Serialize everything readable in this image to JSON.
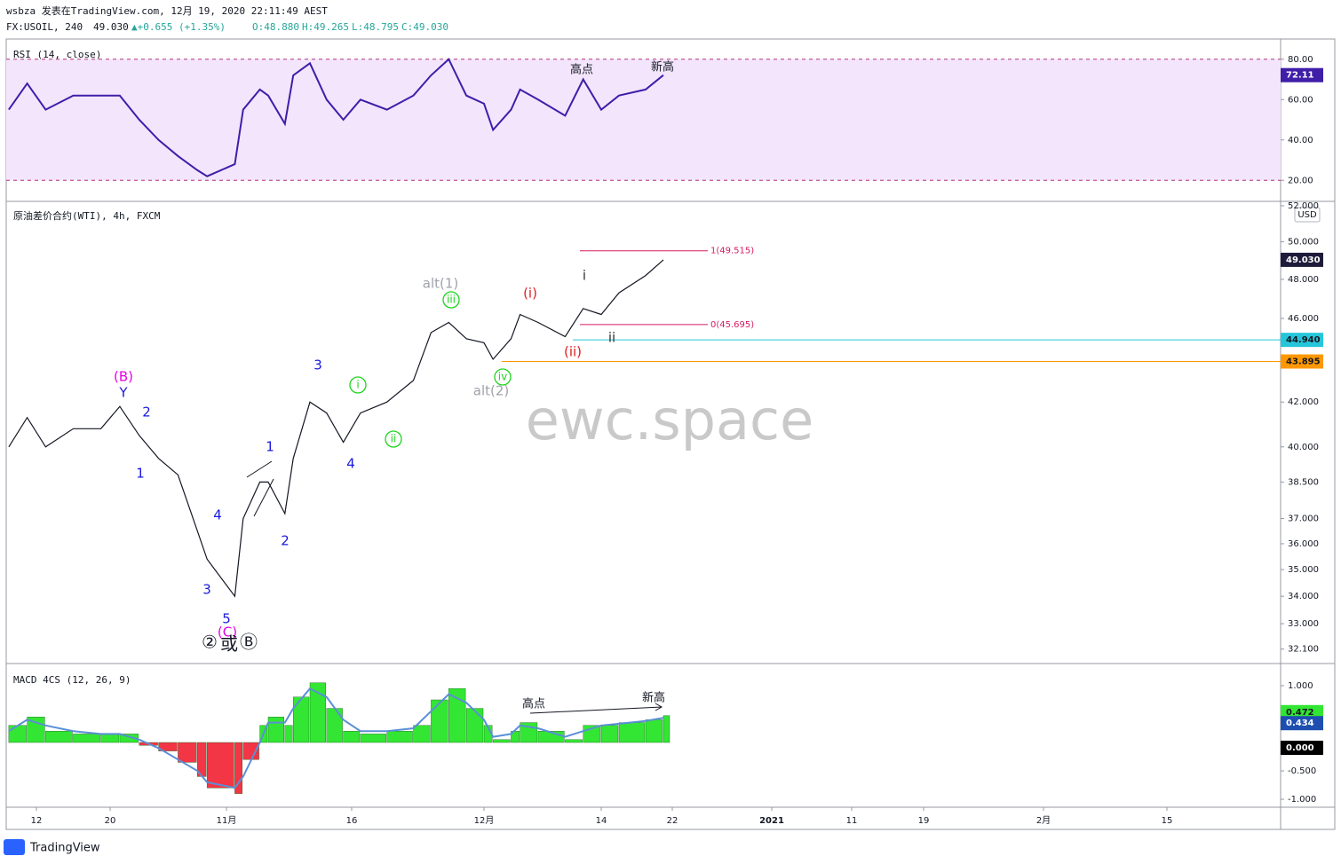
{
  "header": {
    "line1": "wsbza 发表在TradingView.com, 12月 19, 2020 22:11:49 AEST",
    "symbol": "FX:USOIL, 240",
    "last": "49.030",
    "change": "▲+0.655 (+1.35%)",
    "ohlc": [
      "O:48.880",
      "H:49.265",
      "L:48.795",
      "C:49.030"
    ]
  },
  "footer": "TradingView",
  "watermark": "ewc.space",
  "chart_data": [
    {
      "type": "line",
      "title": "RSI (14, close)",
      "color": "#3f1ea8",
      "x": [
        "2020-10-09",
        "2020-10-11",
        "2020-10-13",
        "2020-10-16",
        "2020-10-19",
        "2020-10-21",
        "2020-10-23",
        "2020-10-25",
        "2020-10-27",
        "2020-10-29",
        "2020-10-30",
        "2020-11-02",
        "2020-11-03",
        "2020-11-05",
        "2020-11-06",
        "2020-11-08",
        "2020-11-09",
        "2020-11-11",
        "2020-11-13",
        "2020-11-15",
        "2020-11-17",
        "2020-11-20",
        "2020-11-23",
        "2020-11-25",
        "2020-11-27",
        "2020-11-29",
        "2020-12-01",
        "2020-12-02",
        "2020-12-04",
        "2020-12-05",
        "2020-12-07",
        "2020-12-10",
        "2020-12-12",
        "2020-12-14",
        "2020-12-16",
        "2020-12-19",
        "2020-12-21"
      ],
      "values": [
        55,
        68,
        55,
        62,
        62,
        62,
        50,
        40,
        32,
        25,
        22,
        28,
        55,
        65,
        62,
        48,
        72,
        78,
        60,
        50,
        60,
        55,
        62,
        72,
        80,
        62,
        58,
        45,
        55,
        65,
        60,
        52,
        70,
        55,
        62,
        65,
        72.11
      ],
      "ylim": [
        10,
        90
      ],
      "yticks": [
        {
          "value": 80,
          "label": "80.00"
        },
        {
          "value": 60,
          "label": "60.00"
        },
        {
          "value": 40,
          "label": "40.00"
        },
        {
          "value": 20,
          "label": "20.00"
        }
      ],
      "band": [
        20,
        80
      ],
      "band_color": "#f3e5fc",
      "annotations": [
        {
          "text": "高点",
          "color": "#131722"
        },
        {
          "text": "新高",
          "color": "#131722"
        }
      ]
    },
    {
      "type": "line",
      "title": "原油差价合约(WTI), 4h, FXCM",
      "currency": "USD",
      "log_scale": true,
      "color": "#131722",
      "x": [
        "2020-10-09",
        "2020-10-11",
        "2020-10-13",
        "2020-10-16",
        "2020-10-19",
        "2020-10-21",
        "2020-10-23",
        "2020-10-25",
        "2020-10-27",
        "2020-10-29",
        "2020-10-30",
        "2020-11-02",
        "2020-11-03",
        "2020-11-05",
        "2020-11-06",
        "2020-11-08",
        "2020-11-09",
        "2020-11-11",
        "2020-11-13",
        "2020-11-15",
        "2020-11-17",
        "2020-11-20",
        "2020-11-23",
        "2020-11-25",
        "2020-11-27",
        "2020-11-29",
        "2020-12-01",
        "2020-12-02",
        "2020-12-04",
        "2020-12-05",
        "2020-12-07",
        "2020-12-10",
        "2020-12-12",
        "2020-12-14",
        "2020-12-16",
        "2020-12-19",
        "2020-12-21"
      ],
      "values": [
        40.0,
        41.3,
        40.0,
        40.8,
        40.8,
        41.8,
        40.5,
        39.5,
        38.8,
        36.5,
        35.4,
        34.0,
        37.0,
        38.5,
        38.5,
        37.2,
        39.5,
        42.0,
        41.5,
        40.2,
        41.5,
        42.0,
        43.0,
        45.3,
        45.8,
        45.0,
        44.8,
        44.0,
        45.0,
        46.2,
        45.8,
        45.1,
        46.5,
        46.2,
        47.3,
        48.2,
        49.03
      ],
      "ylim": [
        31.6,
        52.2
      ],
      "yticks": [
        {
          "value": 52,
          "label": "52.000"
        },
        {
          "value": 50,
          "label": "50.000"
        },
        {
          "value": 48,
          "label": "48.000"
        },
        {
          "value": 46,
          "label": "46.000"
        },
        {
          "value": 42,
          "label": "42.000"
        },
        {
          "value": 40,
          "label": "40.000"
        },
        {
          "value": 38.5,
          "label": "38.500"
        },
        {
          "value": 37,
          "label": "37.000"
        },
        {
          "value": 36,
          "label": "36.000"
        },
        {
          "value": 35,
          "label": "35.000"
        },
        {
          "value": 34,
          "label": "34.000"
        },
        {
          "value": 33,
          "label": "33.000"
        },
        {
          "value": 32.1,
          "label": "32.100"
        }
      ],
      "xticks": [
        {
          "value": "2020-10-12",
          "label": "12"
        },
        {
          "value": "2020-10-20",
          "label": "20"
        },
        {
          "value": "2020-11-01",
          "label": "11月"
        },
        {
          "value": "2020-11-16",
          "label": "16"
        },
        {
          "value": "2020-12-01",
          "label": "12月"
        },
        {
          "value": "2020-12-14",
          "label": "14"
        },
        {
          "value": "2020-12-22",
          "label": "22"
        },
        {
          "value": "2021-01-01",
          "label": "2021"
        },
        {
          "value": "2021-01-11",
          "label": "11"
        },
        {
          "value": "2021-01-19",
          "label": "19"
        },
        {
          "value": "2021-02-01",
          "label": "2月"
        },
        {
          "value": "2021-02-15",
          "label": "15"
        }
      ],
      "levels": [
        {
          "value": 49.515,
          "label": "1(49.515)"
        },
        {
          "value": 45.695,
          "label": "0(45.695)"
        }
      ],
      "level_color": "#d81b60",
      "tags": [
        {
          "value": 49.03,
          "label": "49.030",
          "color": "#1e1b3a",
          "line": false
        },
        {
          "value": 44.94,
          "label": "44.940",
          "color": "#26c6da",
          "line": true
        },
        {
          "value": 43.895,
          "label": "43.895",
          "color": "#ff9800",
          "line": true
        }
      ],
      "annotations": [
        {
          "text": "(B)",
          "color": "#e600e6"
        },
        {
          "text": "Y",
          "color": "#1a1adb"
        },
        {
          "text": "2",
          "color": "#1a1adb"
        },
        {
          "text": "1",
          "color": "#1a1adb"
        },
        {
          "text": "4",
          "color": "#1a1adb"
        },
        {
          "text": "3",
          "color": "#1a1adb"
        },
        {
          "text": "5",
          "color": "#1a1adb"
        },
        {
          "text": "(C)",
          "color": "#e600e6"
        },
        {
          "text": "②",
          "color": "#131722"
        },
        {
          "text": "或",
          "color": "#131722"
        },
        {
          "text": "Ⓑ",
          "color": "#131722"
        },
        {
          "text": "1",
          "color": "#1a1adb"
        },
        {
          "text": "2",
          "color": "#1a1adb"
        },
        {
          "text": "3",
          "color": "#1a1adb"
        },
        {
          "text": "4",
          "color": "#1a1adb"
        },
        {
          "text": "i",
          "color": "#1ed41e",
          "circled": true
        },
        {
          "text": "ii",
          "color": "#1ed41e",
          "circled": true
        },
        {
          "text": "iii",
          "color": "#1ed41e",
          "circled": true
        },
        {
          "text": "iv",
          "color": "#1ed41e",
          "circled": true
        },
        {
          "text": "alt(1)",
          "color": "#a0a3ab"
        },
        {
          "text": "alt(2)",
          "color": "#a0a3ab"
        },
        {
          "text": "(i)",
          "color": "#e01f1f"
        },
        {
          "text": "(ii)",
          "color": "#e01f1f"
        },
        {
          "text": "i",
          "color": "#333333"
        },
        {
          "text": "ii",
          "color": "#333333"
        }
      ]
    },
    {
      "type": "macd",
      "title": "MACD 4CS (12, 26, 9)",
      "up_color": "#33e633",
      "down_color": "#f23645",
      "signal_color": "#5b8fd6",
      "x": [
        "2020-10-09",
        "2020-10-11",
        "2020-10-13",
        "2020-10-16",
        "2020-10-19",
        "2020-10-21",
        "2020-10-23",
        "2020-10-25",
        "2020-10-27",
        "2020-10-29",
        "2020-10-30",
        "2020-11-02",
        "2020-11-03",
        "2020-11-05",
        "2020-11-06",
        "2020-11-08",
        "2020-11-09",
        "2020-11-11",
        "2020-11-13",
        "2020-11-15",
        "2020-11-17",
        "2020-11-20",
        "2020-11-23",
        "2020-11-25",
        "2020-11-27",
        "2020-11-29",
        "2020-12-01",
        "2020-12-02",
        "2020-12-04",
        "2020-12-05",
        "2020-12-07",
        "2020-12-10",
        "2020-12-12",
        "2020-12-14",
        "2020-12-16",
        "2020-12-19",
        "2020-12-21"
      ],
      "values": [
        0.3,
        0.45,
        0.2,
        0.15,
        0.15,
        0.15,
        -0.05,
        -0.15,
        -0.35,
        -0.6,
        -0.8,
        -0.9,
        -0.3,
        0.3,
        0.45,
        0.3,
        0.8,
        1.05,
        0.6,
        0.2,
        0.15,
        0.2,
        0.3,
        0.75,
        0.95,
        0.6,
        0.3,
        0.05,
        0.2,
        0.35,
        0.2,
        0.05,
        0.3,
        0.3,
        0.35,
        0.4,
        0.472
      ],
      "signal_values": [
        0.2,
        0.4,
        0.3,
        0.2,
        0.15,
        0.15,
        0.05,
        -0.1,
        -0.3,
        -0.5,
        -0.7,
        -0.8,
        -0.6,
        0.0,
        0.35,
        0.35,
        0.6,
        0.95,
        0.8,
        0.4,
        0.2,
        0.2,
        0.25,
        0.55,
        0.85,
        0.7,
        0.4,
        0.1,
        0.15,
        0.3,
        0.25,
        0.1,
        0.2,
        0.3,
        0.33,
        0.38,
        0.434
      ],
      "ylim": [
        -1.14,
        1.39
      ],
      "yticks": [
        {
          "value": 1,
          "label": "1.000"
        },
        {
          "value": -0.5,
          "label": "-0.500"
        },
        {
          "value": -1,
          "label": "-1.000"
        }
      ],
      "zero_tag": {
        "value": 0,
        "label": "0.000"
      },
      "annotations": [
        {
          "text": "高点",
          "color": "#131722"
        },
        {
          "text": "新高",
          "color": "#131722"
        }
      ]
    }
  ]
}
